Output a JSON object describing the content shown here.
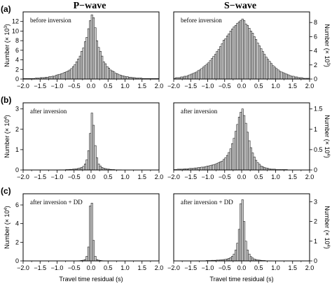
{
  "column_titles": [
    "P−wave",
    "S−wave"
  ],
  "row_labels": [
    "(a)",
    "(b)",
    "(c)"
  ],
  "x_axis_label": "Travel time residual (s)",
  "x_tick_labels": [
    "−2.0",
    "−1.5",
    "−1.0",
    "−0.5",
    "0.0",
    "0.5",
    "1.0",
    "1.5",
    "2.0"
  ],
  "ylabel_rows": [
    {
      "prefix": "Number (× 10",
      "exp": "3",
      "suffix": ")"
    },
    {
      "prefix": "Number (× 10",
      "exp": "4",
      "suffix": ")"
    },
    {
      "prefix": "Number (× 10",
      "exp": "4",
      "suffix": ")"
    }
  ],
  "chart_data": [
    {
      "type": "bar",
      "row": "(a)",
      "column": "P−wave",
      "annotation": "before inversion",
      "xlim": [
        -2.0,
        2.0
      ],
      "bin_width": 0.05,
      "ylim": [
        0,
        14
      ],
      "yticks": [
        0,
        2,
        4,
        6,
        8,
        10,
        12
      ],
      "y_axis_side": "left",
      "bin_centers": [
        -1.975,
        -1.925,
        -1.875,
        -1.825,
        -1.775,
        -1.725,
        -1.675,
        -1.625,
        -1.575,
        -1.525,
        -1.475,
        -1.425,
        -1.375,
        -1.325,
        -1.275,
        -1.225,
        -1.175,
        -1.125,
        -1.075,
        -1.025,
        -0.975,
        -0.925,
        -0.875,
        -0.825,
        -0.775,
        -0.725,
        -0.675,
        -0.625,
        -0.575,
        -0.525,
        -0.475,
        -0.425,
        -0.375,
        -0.325,
        -0.275,
        -0.225,
        -0.175,
        -0.125,
        -0.075,
        -0.025,
        0.025,
        0.075,
        0.125,
        0.175,
        0.225,
        0.275,
        0.325,
        0.375,
        0.425,
        0.475,
        0.525,
        0.575,
        0.625,
        0.675,
        0.725,
        0.775,
        0.825,
        0.875,
        0.925,
        0.975,
        1.025,
        1.075,
        1.125,
        1.175,
        1.225,
        1.275,
        1.325,
        1.375,
        1.425,
        1.475,
        1.525,
        1.575,
        1.625,
        1.675,
        1.725,
        1.775,
        1.825,
        1.875,
        1.925,
        1.975
      ],
      "values": [
        0.1,
        0.1,
        0.1,
        0.1,
        0.1,
        0.1,
        0.1,
        0.2,
        0.2,
        0.2,
        0.3,
        0.3,
        0.3,
        0.4,
        0.4,
        0.5,
        0.5,
        0.6,
        0.6,
        0.8,
        0.9,
        1.0,
        1.1,
        1.2,
        1.4,
        1.5,
        1.7,
        1.9,
        2.2,
        2.6,
        3.0,
        3.6,
        4.2,
        4.8,
        5.8,
        6.5,
        7.8,
        8.7,
        10.5,
        12.2,
        13.4,
        12.8,
        10.7,
        8.0,
        6.6,
        5.8,
        4.8,
        3.6,
        3.2,
        2.6,
        2.3,
        1.9,
        1.7,
        1.5,
        1.2,
        1.1,
        0.9,
        0.8,
        0.7,
        0.6,
        0.5,
        0.5,
        0.4,
        0.4,
        0.3,
        0.3,
        0.2,
        0.2,
        0.2,
        0.2,
        0.1,
        0.1,
        0.1,
        0.1,
        0.1,
        0.1,
        0.1,
        0.1,
        0.1,
        0.1
      ]
    },
    {
      "type": "bar",
      "row": "(a)",
      "column": "S−wave",
      "annotation": "before inversion",
      "xlim": [
        -2.0,
        2.0
      ],
      "bin_width": 0.05,
      "ylim": [
        0,
        9.5
      ],
      "yticks": [
        0,
        2,
        4,
        6,
        8
      ],
      "y_axis_side": "right",
      "bin_centers": [
        -1.975,
        -1.925,
        -1.875,
        -1.825,
        -1.775,
        -1.725,
        -1.675,
        -1.625,
        -1.575,
        -1.525,
        -1.475,
        -1.425,
        -1.375,
        -1.325,
        -1.275,
        -1.225,
        -1.175,
        -1.125,
        -1.075,
        -1.025,
        -0.975,
        -0.925,
        -0.875,
        -0.825,
        -0.775,
        -0.725,
        -0.675,
        -0.625,
        -0.575,
        -0.525,
        -0.475,
        -0.425,
        -0.375,
        -0.325,
        -0.275,
        -0.225,
        -0.175,
        -0.125,
        -0.075,
        -0.025,
        0.025,
        0.075,
        0.125,
        0.175,
        0.225,
        0.275,
        0.325,
        0.375,
        0.425,
        0.475,
        0.525,
        0.575,
        0.625,
        0.675,
        0.725,
        0.775,
        0.825,
        0.875,
        0.925,
        0.975,
        1.025,
        1.075,
        1.125,
        1.175,
        1.225,
        1.275,
        1.325,
        1.375,
        1.425,
        1.475,
        1.525,
        1.575,
        1.625,
        1.675,
        1.725,
        1.775,
        1.825,
        1.875,
        1.925,
        1.975
      ],
      "values": [
        0.1,
        0.2,
        0.2,
        0.2,
        0.3,
        0.3,
        0.4,
        0.4,
        0.5,
        0.6,
        0.7,
        0.8,
        0.9,
        1.0,
        1.2,
        1.3,
        1.5,
        1.7,
        1.9,
        2.1,
        2.3,
        2.6,
        2.9,
        3.2,
        3.5,
        3.9,
        4.2,
        4.6,
        5.0,
        5.5,
        5.7,
        6.1,
        6.4,
        6.8,
        7.1,
        7.4,
        7.6,
        7.9,
        8.1,
        8.3,
        8.5,
        8.3,
        7.8,
        7.6,
        7.2,
        6.8,
        6.5,
        6.0,
        5.6,
        5.1,
        4.7,
        4.3,
        3.9,
        3.5,
        3.1,
        2.8,
        2.5,
        2.2,
        1.9,
        1.7,
        1.5,
        1.3,
        1.1,
        1.0,
        0.9,
        0.8,
        0.7,
        0.6,
        0.5,
        0.4,
        0.4,
        0.3,
        0.3,
        0.2,
        0.2,
        0.2,
        0.1,
        0.1,
        0.1,
        0.1
      ]
    },
    {
      "type": "bar",
      "row": "(b)",
      "column": "P−wave",
      "annotation": "after inversion",
      "xlim": [
        -2.0,
        2.0
      ],
      "bin_width": 0.05,
      "ylim": [
        0,
        3.3
      ],
      "yticks": [
        0,
        1,
        2,
        3
      ],
      "y_axis_side": "left",
      "bin_centers": [
        -1.975,
        -1.925,
        -1.875,
        -1.825,
        -1.775,
        -1.725,
        -1.675,
        -1.625,
        -1.575,
        -1.525,
        -1.475,
        -1.425,
        -1.375,
        -1.325,
        -1.275,
        -1.225,
        -1.175,
        -1.125,
        -1.075,
        -1.025,
        -0.975,
        -0.925,
        -0.875,
        -0.825,
        -0.775,
        -0.725,
        -0.675,
        -0.625,
        -0.575,
        -0.525,
        -0.475,
        -0.425,
        -0.375,
        -0.325,
        -0.275,
        -0.225,
        -0.175,
        -0.125,
        -0.075,
        -0.025,
        0.025,
        0.075,
        0.125,
        0.175,
        0.225,
        0.275,
        0.325,
        0.375,
        0.425,
        0.475,
        0.525,
        0.575,
        0.625,
        0.675,
        0.725,
        0.775,
        0.825,
        0.875,
        0.925,
        0.975,
        1.025,
        1.075,
        1.125,
        1.175,
        1.225,
        1.275,
        1.325,
        1.375,
        1.425,
        1.475,
        1.525,
        1.575,
        1.625,
        1.675,
        1.725,
        1.775,
        1.825,
        1.875,
        1.925,
        1.975
      ],
      "values": [
        0.0,
        0.0,
        0.0,
        0.0,
        0.0,
        0.0,
        0.0,
        0.0,
        0.0,
        0.0,
        0.0,
        0.0,
        0.0,
        0.0,
        0.0,
        0.0,
        0.0,
        0.0,
        0.0,
        0.0,
        0.0,
        0.01,
        0.01,
        0.01,
        0.01,
        0.02,
        0.02,
        0.03,
        0.03,
        0.04,
        0.05,
        0.06,
        0.08,
        0.1,
        0.13,
        0.18,
        0.3,
        0.5,
        0.95,
        1.8,
        2.8,
        2.2,
        1.2,
        0.6,
        0.3,
        0.2,
        0.13,
        0.09,
        0.07,
        0.05,
        0.04,
        0.03,
        0.02,
        0.02,
        0.01,
        0.01,
        0.01,
        0.01,
        0.0,
        0.0,
        0.0,
        0.0,
        0.0,
        0.0,
        0.0,
        0.0,
        0.0,
        0.0,
        0.0,
        0.0,
        0.0,
        0.0,
        0.0,
        0.0,
        0.0,
        0.0,
        0.0,
        0.0,
        0.0,
        0.0
      ]
    },
    {
      "type": "bar",
      "row": "(b)",
      "column": "S−wave",
      "annotation": "after inversion",
      "xlim": [
        -2.0,
        2.0
      ],
      "bin_width": 0.05,
      "ylim": [
        0,
        1.65
      ],
      "yticks": [
        0,
        0.5,
        1.0,
        1.5
      ],
      "y_axis_side": "right",
      "bin_centers": [
        -1.975,
        -1.925,
        -1.875,
        -1.825,
        -1.775,
        -1.725,
        -1.675,
        -1.625,
        -1.575,
        -1.525,
        -1.475,
        -1.425,
        -1.375,
        -1.325,
        -1.275,
        -1.225,
        -1.175,
        -1.125,
        -1.075,
        -1.025,
        -0.975,
        -0.925,
        -0.875,
        -0.825,
        -0.775,
        -0.725,
        -0.675,
        -0.625,
        -0.575,
        -0.525,
        -0.475,
        -0.425,
        -0.375,
        -0.325,
        -0.275,
        -0.225,
        -0.175,
        -0.125,
        -0.075,
        -0.025,
        0.025,
        0.075,
        0.125,
        0.175,
        0.225,
        0.275,
        0.325,
        0.375,
        0.425,
        0.475,
        0.525,
        0.575,
        0.625,
        0.675,
        0.725,
        0.775,
        0.825,
        0.875,
        0.925,
        0.975,
        1.025,
        1.075,
        1.125,
        1.175,
        1.225,
        1.275,
        1.325,
        1.375,
        1.425,
        1.475,
        1.525,
        1.575,
        1.625,
        1.675,
        1.725,
        1.775,
        1.825,
        1.875,
        1.925,
        1.975
      ],
      "values": [
        0.01,
        0.01,
        0.02,
        0.02,
        0.02,
        0.02,
        0.03,
        0.03,
        0.03,
        0.04,
        0.04,
        0.04,
        0.05,
        0.05,
        0.06,
        0.06,
        0.07,
        0.07,
        0.08,
        0.09,
        0.1,
        0.11,
        0.12,
        0.13,
        0.14,
        0.16,
        0.18,
        0.2,
        0.22,
        0.26,
        0.3,
        0.36,
        0.43,
        0.52,
        0.65,
        0.78,
        0.95,
        1.12,
        1.3,
        1.42,
        1.5,
        1.34,
        1.15,
        0.93,
        0.72,
        0.55,
        0.42,
        0.32,
        0.24,
        0.18,
        0.14,
        0.1,
        0.08,
        0.06,
        0.05,
        0.04,
        0.03,
        0.02,
        0.02,
        0.02,
        0.01,
        0.01,
        0.01,
        0.01,
        0.01,
        0.01,
        0.01,
        0.0,
        0.0,
        0.0,
        0.0,
        0.0,
        0.0,
        0.0,
        0.0,
        0.0,
        0.0,
        0.0,
        0.0,
        0.0
      ]
    },
    {
      "type": "bar",
      "row": "(c)",
      "column": "P−wave",
      "annotation": "after inversion + DD",
      "xlim": [
        -2.0,
        2.0
      ],
      "bin_width": 0.05,
      "ylim": [
        0,
        7.2
      ],
      "yticks": [
        0,
        2,
        4,
        6
      ],
      "y_axis_side": "left",
      "bin_centers": [
        -1.975,
        -1.925,
        -1.875,
        -1.825,
        -1.775,
        -1.725,
        -1.675,
        -1.625,
        -1.575,
        -1.525,
        -1.475,
        -1.425,
        -1.375,
        -1.325,
        -1.275,
        -1.225,
        -1.175,
        -1.125,
        -1.075,
        -1.025,
        -0.975,
        -0.925,
        -0.875,
        -0.825,
        -0.775,
        -0.725,
        -0.675,
        -0.625,
        -0.575,
        -0.525,
        -0.475,
        -0.425,
        -0.375,
        -0.325,
        -0.275,
        -0.225,
        -0.175,
        -0.125,
        -0.075,
        -0.025,
        0.025,
        0.075,
        0.125,
        0.175,
        0.225,
        0.275,
        0.325,
        0.375,
        0.425,
        0.475,
        0.525,
        0.575,
        0.625,
        0.675,
        0.725,
        0.775,
        0.825,
        0.875,
        0.925,
        0.975,
        1.025,
        1.075,
        1.125,
        1.175,
        1.225,
        1.275,
        1.325,
        1.375,
        1.425,
        1.475,
        1.525,
        1.575,
        1.625,
        1.675,
        1.725,
        1.775,
        1.825,
        1.875,
        1.925,
        1.975
      ],
      "values": [
        0.0,
        0.0,
        0.0,
        0.0,
        0.0,
        0.0,
        0.0,
        0.0,
        0.0,
        0.0,
        0.0,
        0.0,
        0.0,
        0.0,
        0.0,
        0.0,
        0.0,
        0.0,
        0.0,
        0.0,
        0.0,
        0.0,
        0.0,
        0.0,
        0.0,
        0.0,
        0.0,
        0.0,
        0.0,
        0.0,
        0.0,
        0.0,
        0.02,
        0.03,
        0.05,
        0.08,
        0.15,
        0.5,
        1.5,
        5.9,
        6.2,
        2.2,
        0.5,
        0.15,
        0.08,
        0.05,
        0.03,
        0.02,
        0.0,
        0.0,
        0.0,
        0.0,
        0.0,
        0.0,
        0.0,
        0.0,
        0.0,
        0.0,
        0.0,
        0.0,
        0.0,
        0.0,
        0.0,
        0.0,
        0.0,
        0.0,
        0.0,
        0.0,
        0.0,
        0.0,
        0.0,
        0.0,
        0.0,
        0.0,
        0.0,
        0.0,
        0.0,
        0.0,
        0.0,
        0.0
      ]
    },
    {
      "type": "bar",
      "row": "(c)",
      "column": "S−wave",
      "annotation": "after inversion + DD",
      "xlim": [
        -2.0,
        2.0
      ],
      "bin_width": 0.05,
      "ylim": [
        0,
        3.4
      ],
      "yticks": [
        0,
        1,
        2,
        3
      ],
      "y_axis_side": "right",
      "bin_centers": [
        -1.975,
        -1.925,
        -1.875,
        -1.825,
        -1.775,
        -1.725,
        -1.675,
        -1.625,
        -1.575,
        -1.525,
        -1.475,
        -1.425,
        -1.375,
        -1.325,
        -1.275,
        -1.225,
        -1.175,
        -1.125,
        -1.075,
        -1.025,
        -0.975,
        -0.925,
        -0.875,
        -0.825,
        -0.775,
        -0.725,
        -0.675,
        -0.625,
        -0.575,
        -0.525,
        -0.475,
        -0.425,
        -0.375,
        -0.325,
        -0.275,
        -0.225,
        -0.175,
        -0.125,
        -0.075,
        -0.025,
        0.025,
        0.075,
        0.125,
        0.175,
        0.225,
        0.275,
        0.325,
        0.375,
        0.425,
        0.475,
        0.525,
        0.575,
        0.625,
        0.675,
        0.725,
        0.775,
        0.825,
        0.875,
        0.925,
        0.975,
        1.025,
        1.075,
        1.125,
        1.175,
        1.225,
        1.275,
        1.325,
        1.375,
        1.425,
        1.475,
        1.525,
        1.575,
        1.625,
        1.675,
        1.725,
        1.775,
        1.825,
        1.875,
        1.925,
        1.975
      ],
      "values": [
        0.0,
        0.0,
        0.0,
        0.0,
        0.0,
        0.0,
        0.0,
        0.0,
        0.0,
        0.0,
        0.0,
        0.0,
        0.0,
        0.01,
        0.01,
        0.01,
        0.01,
        0.01,
        0.01,
        0.02,
        0.02,
        0.02,
        0.03,
        0.03,
        0.03,
        0.04,
        0.04,
        0.05,
        0.06,
        0.07,
        0.08,
        0.1,
        0.13,
        0.17,
        0.24,
        0.35,
        0.55,
        0.9,
        1.6,
        2.9,
        3.1,
        2.0,
        1.0,
        0.55,
        0.35,
        0.22,
        0.15,
        0.1,
        0.07,
        0.05,
        0.04,
        0.03,
        0.02,
        0.02,
        0.01,
        0.01,
        0.01,
        0.01,
        0.0,
        0.0,
        0.0,
        0.0,
        0.0,
        0.0,
        0.0,
        0.0,
        0.0,
        0.0,
        0.0,
        0.0,
        0.0,
        0.0,
        0.0,
        0.0,
        0.0,
        0.0,
        0.0,
        0.0,
        0.0,
        0.0
      ]
    }
  ]
}
